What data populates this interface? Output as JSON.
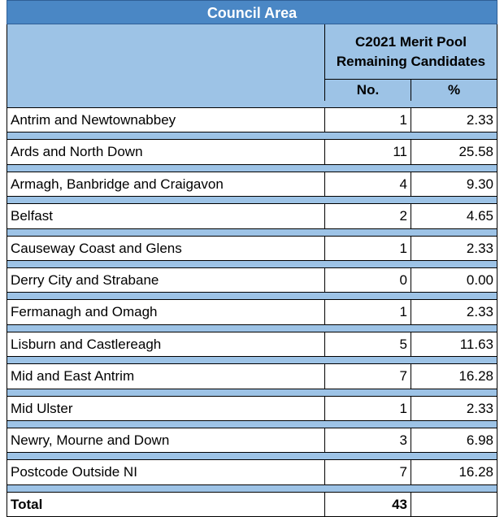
{
  "table": {
    "title": "Council Area",
    "group_header_line1": "C2021 Merit Pool",
    "group_header_line2": "Remaining Candidates",
    "col_no": "No.",
    "col_pct": "%",
    "rows": [
      {
        "name": "Antrim and Newtownabbey",
        "no": "1",
        "pct": "2.33"
      },
      {
        "name": "Ards and North Down",
        "no": "11",
        "pct": "25.58"
      },
      {
        "name": "Armagh, Banbridge and Craigavon",
        "no": "4",
        "pct": "9.30"
      },
      {
        "name": "Belfast",
        "no": "2",
        "pct": "4.65"
      },
      {
        "name": "Causeway Coast and Glens",
        "no": "1",
        "pct": "2.33"
      },
      {
        "name": "Derry City and Strabane",
        "no": "0",
        "pct": "0.00"
      },
      {
        "name": "Fermanagh and Omagh",
        "no": "1",
        "pct": "2.33"
      },
      {
        "name": "Lisburn and Castlereagh",
        "no": "5",
        "pct": "11.63"
      },
      {
        "name": "Mid and East Antrim",
        "no": "7",
        "pct": "16.28"
      },
      {
        "name": "Mid Ulster",
        "no": "1",
        "pct": "2.33"
      },
      {
        "name": "Newry, Mourne and Down",
        "no": "3",
        "pct": "6.98"
      },
      {
        "name": "Postcode Outside NI",
        "no": "7",
        "pct": "16.28"
      }
    ],
    "total": {
      "name": "Total",
      "no": "43",
      "pct": ""
    }
  },
  "colors": {
    "header_dark": "#4a87c5",
    "header_light": "#9dc3e6"
  }
}
